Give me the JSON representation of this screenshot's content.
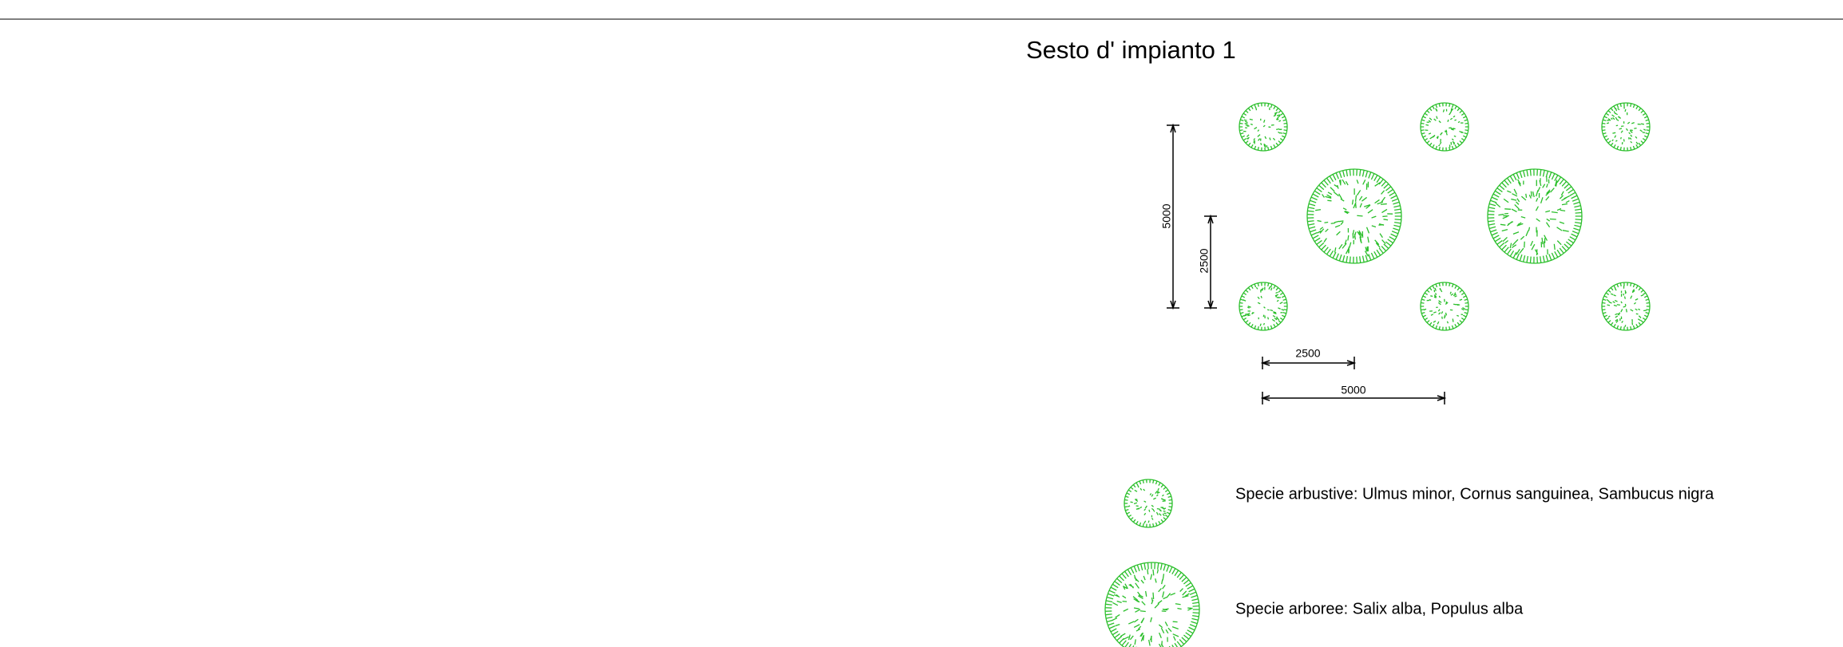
{
  "title": "Sesto d' impianto 1",
  "dimensions": [
    {
      "label": "5000"
    },
    {
      "label": "2500"
    },
    {
      "label": "2500"
    },
    {
      "label": "5000"
    }
  ],
  "legend": [
    {
      "label": "Specie arbustive: Ulmus minor, Cornus sanguinea, Sambucus nigra"
    },
    {
      "label": "Specie arboree: Salix alba, Populus alba"
    }
  ]
}
